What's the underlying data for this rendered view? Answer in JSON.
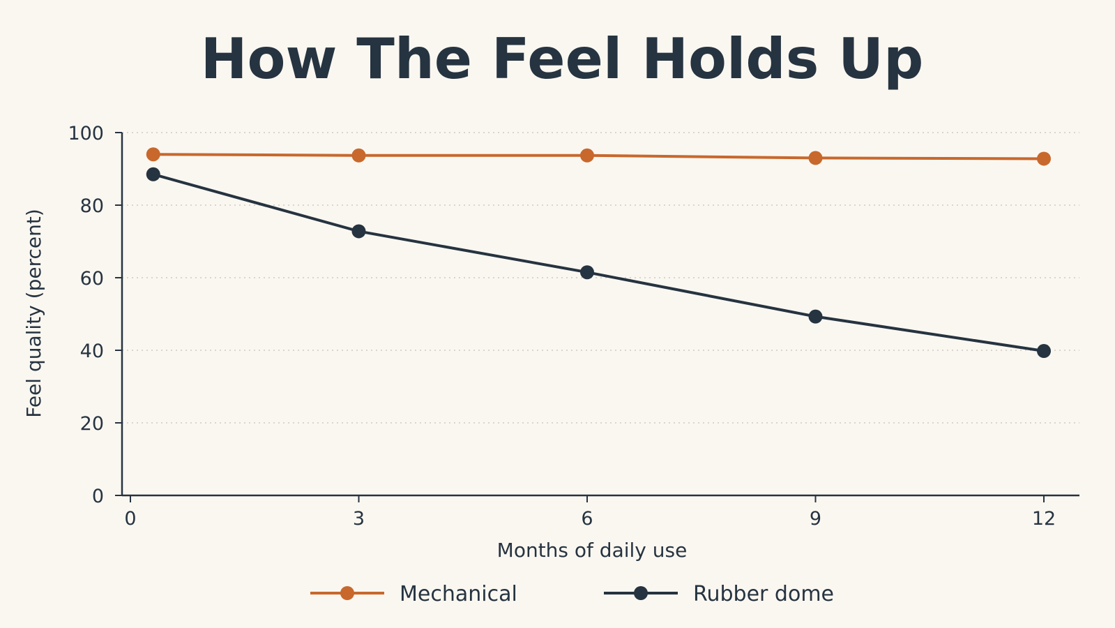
{
  "chart_data": {
    "type": "line",
    "title": "How The Feel Holds Up",
    "xlabel": "Months of daily use",
    "ylabel": "Feel quality (percent)",
    "xlim": [
      0,
      12
    ],
    "ylim": [
      0,
      100
    ],
    "x_ticks": [
      0,
      3,
      6,
      9,
      12
    ],
    "y_ticks": [
      0,
      20,
      40,
      60,
      80,
      100
    ],
    "grid": "horizontal dotted",
    "legend_position": "bottom",
    "series": [
      {
        "name": "Mechanical",
        "color": "#c8682c",
        "points": [
          {
            "x": 0.3,
            "y": 94
          },
          {
            "x": 3,
            "y": 93.7
          },
          {
            "x": 6,
            "y": 93.7
          },
          {
            "x": 9,
            "y": 93
          },
          {
            "x": 12,
            "y": 92.8
          }
        ]
      },
      {
        "name": "Rubber dome",
        "color": "#263340",
        "points": [
          {
            "x": 0.3,
            "y": 88.5
          },
          {
            "x": 3,
            "y": 72.8
          },
          {
            "x": 6,
            "y": 61.5
          },
          {
            "x": 9,
            "y": 49.3
          },
          {
            "x": 12,
            "y": 39.8
          }
        ]
      }
    ]
  }
}
